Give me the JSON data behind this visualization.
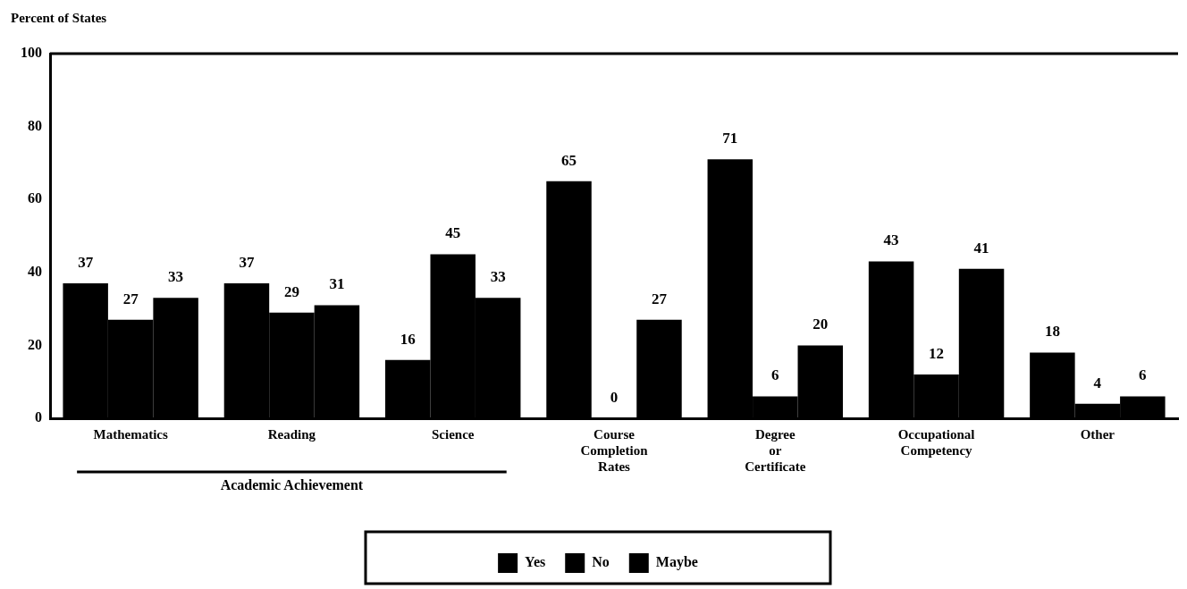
{
  "chart_data": {
    "type": "bar",
    "ylabel": "Percent of States",
    "categories": [
      "Mathematics",
      "Reading",
      "Science",
      "Course Completion Rates",
      "Degree or Certificate",
      "Occupational Competency",
      "Other"
    ],
    "series": [
      {
        "name": "Yes",
        "color": "#000000",
        "values": [
          37,
          37,
          16,
          65,
          71,
          43,
          18
        ]
      },
      {
        "name": "No",
        "color": "#000000",
        "values": [
          27,
          29,
          45,
          0,
          6,
          12,
          4
        ]
      },
      {
        "name": "Maybe",
        "color": "#000000",
        "values": [
          33,
          31,
          33,
          27,
          20,
          41,
          6
        ]
      }
    ],
    "ylim": [
      0,
      100
    ],
    "yticks": [
      0,
      20,
      40,
      60,
      80,
      100
    ],
    "grid": false,
    "legend": "bottom",
    "data_labels": true,
    "annotations": [
      "Academic Achievement"
    ]
  }
}
